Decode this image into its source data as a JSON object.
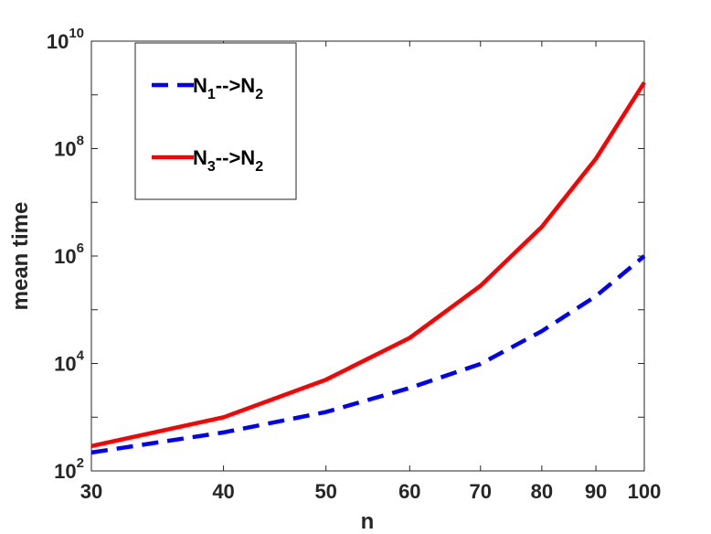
{
  "chart_data": {
    "type": "line",
    "title": "",
    "xlabel": "n",
    "ylabel": "mean time",
    "x_scale": "log",
    "y_scale": "log",
    "xlim": [
      30,
      100
    ],
    "ylim": [
      100,
      10000000000
    ],
    "x_ticks": [
      "30",
      "40",
      "50",
      "60",
      "70",
      "80",
      "90",
      "100"
    ],
    "y_ticks": [
      {
        "base": "10",
        "exp": "2"
      },
      {
        "base": "10",
        "exp": "4"
      },
      {
        "base": "10",
        "exp": "6"
      },
      {
        "base": "10",
        "exp": "8"
      },
      {
        "base": "10",
        "exp": "10"
      }
    ],
    "grid": false,
    "legend_position": "top-left",
    "x": [
      30,
      40,
      50,
      60,
      70,
      80,
      90,
      100
    ],
    "series": [
      {
        "name": "N1-->N2",
        "legend": {
          "a": "N",
          "a_sub": "1",
          "arrow": "-->",
          "b": "N",
          "b_sub": "2"
        },
        "color": "#0000ff",
        "style": "dashed",
        "values": [
          220,
          520,
          1250,
          3500,
          9800,
          40000,
          180000,
          1000000
        ]
      },
      {
        "name": "N3-->N2",
        "legend": {
          "a": "N",
          "a_sub": "3",
          "arrow": "-->",
          "b": "N",
          "b_sub": "2"
        },
        "color": "#ff0000",
        "style": "solid",
        "values": [
          290,
          1000,
          5000,
          30000,
          280000,
          3500000,
          65000000,
          1700000000
        ]
      }
    ]
  }
}
